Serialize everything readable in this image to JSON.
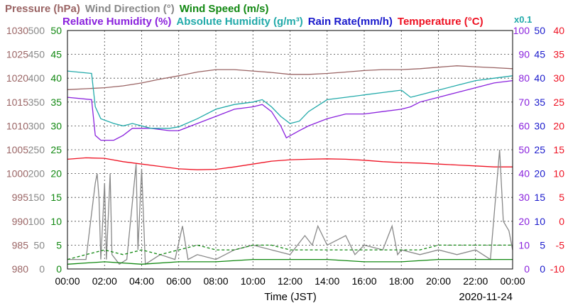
{
  "chart_data": {
    "type": "line",
    "date": "2020-11-24",
    "xlabel": "Time (JST)",
    "x_ticks": [
      "00:00",
      "02:00",
      "04:00",
      "06:00",
      "08:00",
      "10:00",
      "12:00",
      "14:00",
      "16:00",
      "18:00",
      "20:00",
      "22:00",
      "00:00"
    ],
    "x_range_hours": [
      0,
      24
    ],
    "grid": true,
    "legend_row1": [
      {
        "label": "Pressure (hPa)",
        "color": "#9a6464"
      },
      {
        "label": "Wind Direction (°)",
        "color": "#888888"
      },
      {
        "label": "Wind Speed (m/s)",
        "color": "#118811"
      }
    ],
    "legend_row2": [
      {
        "label": "Relative Humidity (%)",
        "color": "#8a22dd"
      },
      {
        "label": "Absolute Humidity (g/m³)",
        "color": "#22aaaa"
      },
      {
        "label": "Rain Rate(mm/h)",
        "color": "#1a1acc"
      },
      {
        "label": "Temperature (°C)",
        "color": "#ee1122"
      }
    ],
    "scale_note": "x0.1",
    "axes": [
      {
        "id": "pressure",
        "color": "#9a6464",
        "range": [
          980,
          1030
        ],
        "ticks": [
          "1030",
          "1025",
          "1020",
          "1015",
          "1010",
          "1005",
          "1000",
          "995",
          "990",
          "985",
          "980"
        ]
      },
      {
        "id": "wind_direction",
        "color": "#888888",
        "range": [
          0,
          500
        ],
        "ticks": [
          "500",
          "450",
          "400",
          "350",
          "300",
          "250",
          "200",
          "150",
          "100",
          "50",
          "0"
        ]
      },
      {
        "id": "wind_speed",
        "color": "#118811",
        "range": [
          0,
          50
        ],
        "ticks": [
          "50",
          "45",
          "40",
          "35",
          "30",
          "25",
          "20",
          "15",
          "10",
          "5",
          "0"
        ]
      },
      {
        "id": "humidity",
        "color": "#8a22dd",
        "range": [
          0,
          100
        ],
        "ticks": [
          "100",
          "90",
          "80",
          "70",
          "60",
          "50",
          "40",
          "30",
          "20",
          "10",
          "0"
        ]
      },
      {
        "id": "rain_rate",
        "color": "#1a1acc",
        "range": [
          0,
          50
        ],
        "ticks": [
          "50",
          "45",
          "40",
          "35",
          "30",
          "25",
          "20",
          "15",
          "10",
          "5",
          "0"
        ]
      },
      {
        "id": "temperature",
        "color": "#ee1122",
        "range": [
          -10,
          40
        ],
        "ticks": [
          "40",
          "35",
          "30",
          "25",
          "20",
          "15",
          "10",
          "5",
          "0",
          "-5",
          "-10"
        ]
      }
    ],
    "series": [
      {
        "name": "Pressure (hPa)",
        "axis": "pressure",
        "color": "#9a6464",
        "points": [
          [
            0,
            1017.6
          ],
          [
            1,
            1017.8
          ],
          [
            2,
            1018
          ],
          [
            3,
            1018.4
          ],
          [
            4,
            1019
          ],
          [
            5,
            1019.8
          ],
          [
            6,
            1020.5
          ],
          [
            7,
            1021.3
          ],
          [
            8,
            1021.8
          ],
          [
            9,
            1021.8
          ],
          [
            10,
            1021.5
          ],
          [
            11,
            1021.2
          ],
          [
            12,
            1020.8
          ],
          [
            13,
            1020.8
          ],
          [
            14,
            1021
          ],
          [
            15,
            1021.3
          ],
          [
            16,
            1021.6
          ],
          [
            17,
            1021.8
          ],
          [
            18,
            1021.8
          ],
          [
            19,
            1022
          ],
          [
            20,
            1022.3
          ],
          [
            21,
            1022.6
          ],
          [
            22,
            1022.4
          ],
          [
            23,
            1022.2
          ],
          [
            24,
            1022
          ]
        ]
      },
      {
        "name": "Relative Humidity (%)",
        "axis": "humidity",
        "color": "#8a22dd",
        "points": [
          [
            0,
            72
          ],
          [
            1.3,
            71
          ],
          [
            1.5,
            56
          ],
          [
            1.8,
            54
          ],
          [
            2.5,
            54
          ],
          [
            3,
            56
          ],
          [
            3.5,
            59
          ],
          [
            4.5,
            59
          ],
          [
            5.5,
            58
          ],
          [
            6,
            58
          ],
          [
            7,
            61
          ],
          [
            8,
            64
          ],
          [
            9,
            67
          ],
          [
            10,
            68
          ],
          [
            10.5,
            69
          ],
          [
            11,
            66
          ],
          [
            11.5,
            60
          ],
          [
            11.8,
            55
          ],
          [
            12.5,
            58
          ],
          [
            13,
            60
          ],
          [
            14,
            63
          ],
          [
            15,
            65
          ],
          [
            16,
            65
          ],
          [
            17,
            66
          ],
          [
            18,
            67
          ],
          [
            18.5,
            68
          ],
          [
            19,
            70
          ],
          [
            20,
            72
          ],
          [
            21,
            74
          ],
          [
            22,
            76
          ],
          [
            23,
            78
          ],
          [
            24,
            79
          ]
        ]
      },
      {
        "name": "Absolute Humidity (g/m³)",
        "axis": "rain_rate",
        "color": "#22aaaa",
        "points": [
          [
            0,
            41.5
          ],
          [
            1.3,
            41
          ],
          [
            1.5,
            34
          ],
          [
            1.8,
            31.5
          ],
          [
            2.5,
            30.5
          ],
          [
            3,
            30
          ],
          [
            3.5,
            30.5
          ],
          [
            4.5,
            29.5
          ],
          [
            5.5,
            29.5
          ],
          [
            6,
            29.8
          ],
          [
            7,
            31.5
          ],
          [
            8,
            33.5
          ],
          [
            9,
            34.5
          ],
          [
            10,
            35
          ],
          [
            10.5,
            35.5
          ],
          [
            11,
            34
          ],
          [
            11.5,
            32
          ],
          [
            12,
            30.5
          ],
          [
            12.5,
            31
          ],
          [
            13,
            33
          ],
          [
            14,
            35.5
          ],
          [
            15,
            36
          ],
          [
            16,
            36.5
          ],
          [
            17,
            37
          ],
          [
            18,
            37.5
          ],
          [
            18.5,
            36
          ],
          [
            19,
            36.5
          ],
          [
            20,
            37.5
          ],
          [
            21,
            38.5
          ],
          [
            22,
            39.5
          ],
          [
            23,
            40
          ],
          [
            24,
            40.5
          ]
        ]
      },
      {
        "name": "Temperature (°C)",
        "axis": "temperature",
        "color": "#ee1122",
        "points": [
          [
            0,
            13
          ],
          [
            1,
            13.3
          ],
          [
            2,
            13.2
          ],
          [
            3,
            12.5
          ],
          [
            4,
            12
          ],
          [
            5,
            11.5
          ],
          [
            6,
            11
          ],
          [
            7,
            10.8
          ],
          [
            8,
            10.9
          ],
          [
            9,
            11.4
          ],
          [
            10,
            12
          ],
          [
            11,
            12.6
          ],
          [
            12,
            12.9
          ],
          [
            13,
            13
          ],
          [
            14,
            13.1
          ],
          [
            15,
            13
          ],
          [
            16,
            12.8
          ],
          [
            17,
            12.5
          ],
          [
            18,
            12.3
          ],
          [
            19,
            12.2
          ],
          [
            20,
            12
          ],
          [
            21,
            11.8
          ],
          [
            22,
            11.6
          ],
          [
            23,
            11.4
          ],
          [
            24,
            11.4
          ]
        ]
      },
      {
        "name": "Wind Direction (°)",
        "axis": "wind_direction",
        "color": "#888888",
        "points": [
          [
            0,
            20
          ],
          [
            1,
            20
          ],
          [
            1.5,
            180
          ],
          [
            1.6,
            200
          ],
          [
            1.7,
            150
          ],
          [
            1.8,
            20
          ],
          [
            2,
            180
          ],
          [
            2.1,
            20
          ],
          [
            2.3,
            200
          ],
          [
            2.4,
            30
          ],
          [
            2.8,
            10
          ],
          [
            3.2,
            20
          ],
          [
            3.7,
            220
          ],
          [
            3.8,
            40
          ],
          [
            4,
            210
          ],
          [
            4.2,
            10
          ],
          [
            5,
            30
          ],
          [
            5.8,
            20
          ],
          [
            6.2,
            90
          ],
          [
            6.5,
            20
          ],
          [
            7,
            30
          ],
          [
            8,
            20
          ],
          [
            9,
            40
          ],
          [
            10,
            50
          ],
          [
            11,
            40
          ],
          [
            12,
            30
          ],
          [
            12.8,
            70
          ],
          [
            13.2,
            50
          ],
          [
            13.5,
            90
          ],
          [
            14,
            50
          ],
          [
            15,
            70
          ],
          [
            15.5,
            30
          ],
          [
            16,
            50
          ],
          [
            17,
            40
          ],
          [
            17.5,
            90
          ],
          [
            17.8,
            30
          ],
          [
            18,
            40
          ],
          [
            19,
            30
          ],
          [
            20,
            40
          ],
          [
            21,
            30
          ],
          [
            22,
            40
          ],
          [
            22.8,
            20
          ],
          [
            23.3,
            250
          ],
          [
            23.5,
            100
          ],
          [
            23.8,
            80
          ],
          [
            24,
            40
          ]
        ]
      },
      {
        "name": "Wind Speed (m/s)",
        "axis": "wind_speed",
        "color": "#118811",
        "style": "dashed",
        "points": [
          [
            0,
            2
          ],
          [
            1,
            3
          ],
          [
            2,
            4
          ],
          [
            3,
            3
          ],
          [
            4,
            4
          ],
          [
            5,
            3
          ],
          [
            6,
            4
          ],
          [
            7,
            5
          ],
          [
            8,
            4
          ],
          [
            9,
            4
          ],
          [
            10,
            5
          ],
          [
            11,
            5
          ],
          [
            12,
            4
          ],
          [
            13,
            4
          ],
          [
            14,
            4
          ],
          [
            15,
            4
          ],
          [
            16,
            4
          ],
          [
            17,
            4
          ],
          [
            18,
            4
          ],
          [
            19,
            4
          ],
          [
            20,
            5
          ],
          [
            21,
            5
          ],
          [
            22,
            5
          ],
          [
            23,
            5
          ],
          [
            24,
            5
          ]
        ]
      },
      {
        "name": "Wind Speed (m/s)",
        "axis": "wind_speed",
        "color": "#118811",
        "style": "solid",
        "points": [
          [
            0,
            1
          ],
          [
            2,
            1.5
          ],
          [
            4,
            1
          ],
          [
            6,
            1.5
          ],
          [
            8,
            1.5
          ],
          [
            10,
            2
          ],
          [
            12,
            2
          ],
          [
            14,
            2
          ],
          [
            16,
            1.5
          ],
          [
            18,
            1.5
          ],
          [
            20,
            2
          ],
          [
            22,
            2
          ],
          [
            24,
            2
          ]
        ]
      }
    ]
  }
}
